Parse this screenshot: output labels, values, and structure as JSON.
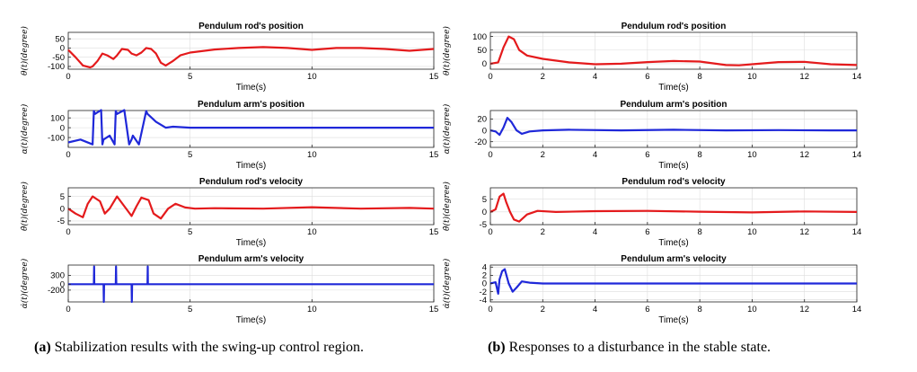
{
  "colors": {
    "red": "#e41a1c",
    "blue": "#1f28d9"
  },
  "captions": {
    "a_label": "(a)",
    "a_text": " Stabilization results with the swing-up control region.",
    "b_label": "(b)",
    "b_text": " Responses to a disturbance in the stable state."
  },
  "chart_data": [
    {
      "type": "line",
      "panel": "a-1",
      "title": "Pendulum rod's position",
      "xlabel": "Time(s)",
      "ylabel": "θ(t)(degree)",
      "xlim": [
        0,
        15
      ],
      "ylim": [
        -115,
        85
      ],
      "xticks": [
        0,
        5,
        10,
        15
      ],
      "yticks": [
        50,
        0,
        -50,
        -100
      ],
      "ytick_labels": [
        "50",
        "0",
        "-50",
        "-100"
      ],
      "color": "red",
      "x": [
        0,
        0.3,
        0.6,
        0.9,
        1.0,
        1.2,
        1.4,
        1.6,
        1.85,
        2.0,
        2.2,
        2.45,
        2.6,
        2.8,
        3.0,
        3.2,
        3.4,
        3.6,
        3.8,
        4.0,
        4.3,
        4.6,
        5.0,
        6.0,
        7.0,
        8.0,
        9.0,
        10.0,
        11.0,
        12.0,
        13.0,
        14.0,
        15.0
      ],
      "y": [
        -10,
        -50,
        -95,
        -105,
        -100,
        -70,
        -30,
        -40,
        -60,
        -40,
        -5,
        -10,
        -30,
        -40,
        -25,
        0,
        -5,
        -30,
        -80,
        -95,
        -70,
        -40,
        -25,
        -8,
        0,
        5,
        0,
        -10,
        0,
        0,
        -5,
        -15,
        -5
      ]
    },
    {
      "type": "line",
      "panel": "a-2",
      "title": "Pendulum arm's position",
      "xlabel": "Time(s)",
      "ylabel": "α(t)(degree)",
      "xlim": [
        0,
        15
      ],
      "ylim": [
        -200,
        175
      ],
      "xticks": [
        0,
        5,
        10,
        15
      ],
      "yticks": [
        100,
        0,
        -100
      ],
      "ytick_labels": [
        "100",
        "0",
        "-100"
      ],
      "color": "blue",
      "x": [
        0,
        0.5,
        1.0,
        1.05,
        1.1,
        1.35,
        1.4,
        1.45,
        1.7,
        1.9,
        1.95,
        2.0,
        2.3,
        2.5,
        2.6,
        2.65,
        2.9,
        3.2,
        3.25,
        3.3,
        3.6,
        4.0,
        4.3,
        5.0,
        15.0
      ],
      "y": [
        -150,
        -120,
        -170,
        170,
        140,
        180,
        -170,
        -120,
        -80,
        -170,
        170,
        140,
        180,
        -170,
        -120,
        -80,
        -170,
        170,
        140,
        130,
        60,
        0,
        10,
        0,
        0
      ]
    },
    {
      "type": "line",
      "panel": "a-3",
      "title": "Pendulum rod's velocity",
      "xlabel": "Time(s)",
      "ylabel": "θ̇(t)(degree)",
      "xlim": [
        0,
        15
      ],
      "ylim": [
        -6.5,
        8.5
      ],
      "xticks": [
        0,
        5,
        10,
        15
      ],
      "yticks": [
        5,
        0,
        -5
      ],
      "ytick_labels": [
        "5",
        "0",
        "-5"
      ],
      "color": "red",
      "x": [
        0,
        0.3,
        0.6,
        0.8,
        1.0,
        1.3,
        1.5,
        1.7,
        2.0,
        2.3,
        2.6,
        2.8,
        3.0,
        3.3,
        3.5,
        3.8,
        4.1,
        4.4,
        4.8,
        5.2,
        6.0,
        8.0,
        10.0,
        12.0,
        14.0,
        15.0
      ],
      "y": [
        0,
        -2,
        -3.5,
        2,
        5,
        3,
        -2,
        0,
        5,
        1,
        -3,
        1,
        4.5,
        3.5,
        -2,
        -4,
        0,
        2,
        0.5,
        0,
        0.2,
        0,
        0.6,
        0,
        0.3,
        0
      ]
    },
    {
      "type": "line",
      "panel": "a-4",
      "title": "Pendulum arm's velocity",
      "xlabel": "Time(s)",
      "ylabel": "α̇(t)(degree)",
      "xlim": [
        0,
        15
      ],
      "ylim": [
        -600,
        650
      ],
      "xticks": [
        0,
        5,
        10,
        15
      ],
      "yticks": [
        300,
        0,
        -200
      ],
      "ytick_labels": [
        "300",
        "0",
        "-200"
      ],
      "color": "blue",
      "x": [
        0,
        1.05,
        1.06,
        1.07,
        1.45,
        1.46,
        1.47,
        1.95,
        1.96,
        1.97,
        2.6,
        2.61,
        2.62,
        3.25,
        3.26,
        3.27,
        15.0
      ],
      "y": [
        0,
        0,
        600,
        0,
        0,
        -600,
        0,
        0,
        600,
        0,
        0,
        -600,
        0,
        0,
        600,
        0,
        0
      ]
    },
    {
      "type": "line",
      "panel": "b-1",
      "title": "Pendulum rod's position",
      "xlabel": "Time(s)",
      "ylabel": "θ(t)(degree)",
      "xlim": [
        0,
        14
      ],
      "ylim": [
        -20,
        115
      ],
      "xticks": [
        0,
        2,
        4,
        6,
        8,
        10,
        12,
        14
      ],
      "yticks": [
        100,
        50,
        0
      ],
      "ytick_labels": [
        "100",
        "50",
        "0"
      ],
      "color": "red",
      "x": [
        0,
        0.3,
        0.5,
        0.7,
        0.9,
        1.1,
        1.4,
        2.0,
        3.0,
        4.0,
        5.0,
        6.0,
        7.0,
        8.0,
        9.0,
        9.5,
        10.0,
        11.0,
        12.0,
        13.0,
        14.0
      ],
      "y": [
        0,
        5,
        60,
        100,
        90,
        50,
        30,
        18,
        5,
        -2,
        0,
        6,
        10,
        8,
        -5,
        -6,
        -2,
        6,
        7,
        -2,
        -5
      ]
    },
    {
      "type": "line",
      "panel": "b-2",
      "title": "Pendulum arm's position",
      "xlabel": "Time(s)",
      "ylabel": "α(t)(degree)",
      "xlim": [
        0,
        14
      ],
      "ylim": [
        -30,
        35
      ],
      "xticks": [
        0,
        2,
        4,
        6,
        8,
        10,
        12,
        14
      ],
      "yticks": [
        20,
        0,
        -20
      ],
      "ytick_labels": [
        "20",
        "0",
        "-20"
      ],
      "color": "blue",
      "x": [
        0,
        0.2,
        0.35,
        0.5,
        0.65,
        0.8,
        1.0,
        1.2,
        1.5,
        2.0,
        3.0,
        5.0,
        7.0,
        9.0,
        11.0,
        13.0,
        14.0
      ],
      "y": [
        0,
        -2,
        -8,
        5,
        22,
        15,
        0,
        -6,
        -2,
        0,
        1,
        0,
        1,
        0,
        0.5,
        0,
        0
      ]
    },
    {
      "type": "line",
      "panel": "b-3",
      "title": "Pendulum rod's velocity",
      "xlabel": "Time(s)",
      "ylabel": "θ̇(t)(degree)",
      "xlim": [
        0,
        14
      ],
      "ylim": [
        -5,
        9.5
      ],
      "xticks": [
        0,
        2,
        4,
        6,
        8,
        10,
        12,
        14
      ],
      "yticks": [
        5,
        0,
        -5
      ],
      "ytick_labels": [
        "5",
        "0",
        "-5"
      ],
      "color": "red",
      "x": [
        0,
        0.2,
        0.35,
        0.5,
        0.6,
        0.75,
        0.9,
        1.1,
        1.4,
        1.8,
        2.5,
        4.0,
        6.0,
        8.0,
        10.0,
        12.0,
        14.0
      ],
      "y": [
        0,
        1,
        6,
        7.2,
        4,
        0,
        -3,
        -3.8,
        -1,
        0.4,
        0,
        0.3,
        0.4,
        0.1,
        -0.2,
        0.2,
        0
      ]
    },
    {
      "type": "line",
      "panel": "b-4",
      "title": "Pendulum arm's velocity",
      "xlabel": "Time(s)",
      "ylabel": "α̇(t)(degree)",
      "xlim": [
        0,
        14
      ],
      "ylim": [
        -4.5,
        4.5
      ],
      "xticks": [
        0,
        2,
        4,
        6,
        8,
        10,
        12,
        14
      ],
      "yticks": [
        4,
        2,
        0,
        -2,
        -4
      ],
      "ytick_labels": [
        "4",
        "2",
        "0",
        "-2",
        "-4"
      ],
      "color": "blue",
      "x": [
        0,
        0.2,
        0.3,
        0.35,
        0.45,
        0.55,
        0.7,
        0.85,
        1.0,
        1.2,
        1.5,
        2.0,
        4.0,
        6.0,
        8.0,
        10.0,
        12.0,
        14.0
      ],
      "y": [
        0,
        0.3,
        -2.5,
        1,
        3,
        3.5,
        0,
        -2,
        -1,
        0.5,
        0.2,
        0,
        0,
        0,
        0,
        0,
        0,
        0
      ]
    }
  ]
}
